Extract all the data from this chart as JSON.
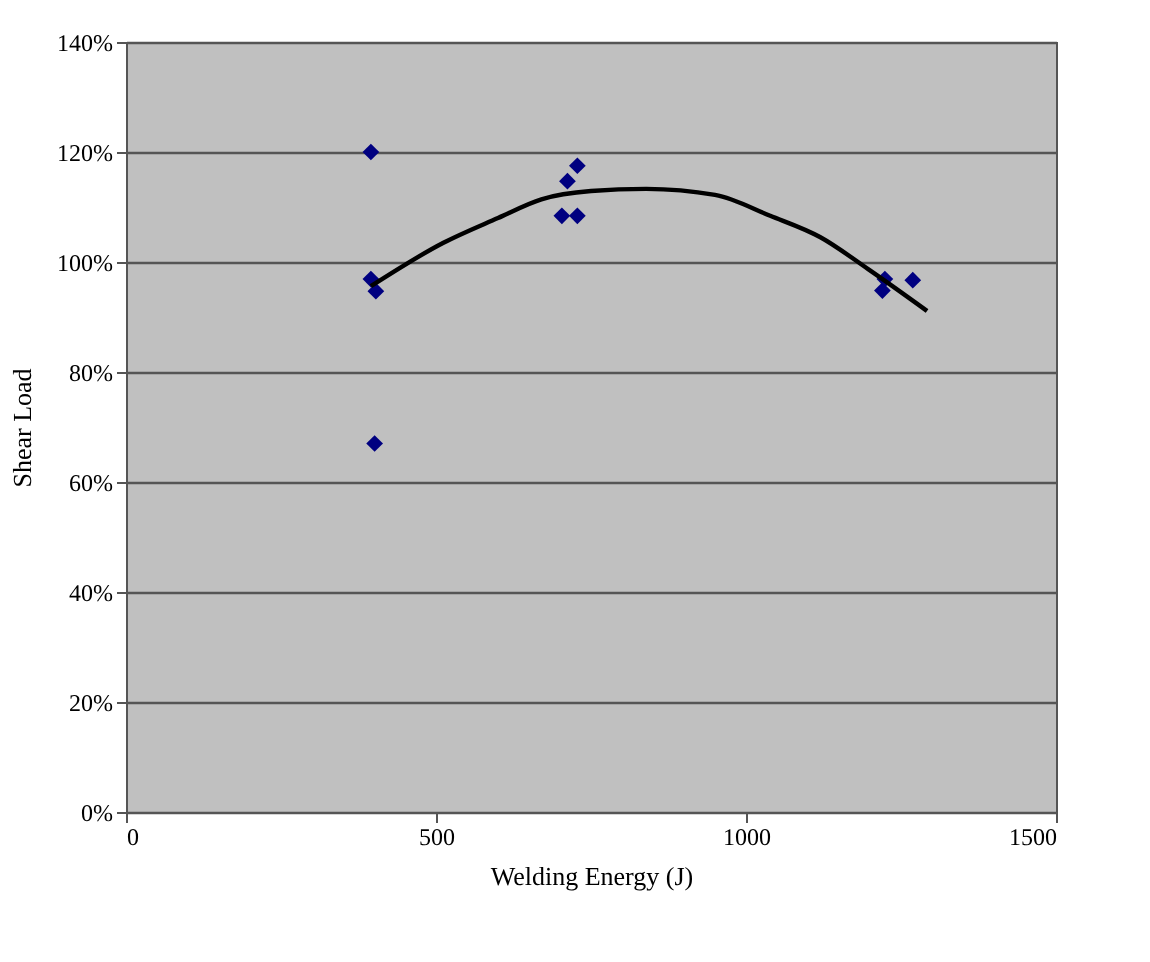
{
  "chart_data": {
    "type": "scatter",
    "xlabel": "Welding Energy (J)",
    "ylabel": "Shear Load",
    "xlim": [
      0,
      1500
    ],
    "xticks": [
      0,
      500,
      1000,
      1500
    ],
    "ylim": [
      0,
      140
    ],
    "yticks": [
      {
        "value": 0,
        "label": "0%"
      },
      {
        "value": 20,
        "label": "20%"
      },
      {
        "value": 40,
        "label": "40%"
      },
      {
        "value": 60,
        "label": "60%"
      },
      {
        "value": 80,
        "label": "80%"
      },
      {
        "value": 100,
        "label": "100%"
      },
      {
        "value": 120,
        "label": "120%"
      },
      {
        "value": 140,
        "label": "140%"
      }
    ],
    "grid": "y",
    "marker": "diamond",
    "series": [
      {
        "color": "#000080",
        "x": [
          395,
          395,
          403,
          401,
          728,
          712,
          703,
          728,
          1224,
          1220,
          1269
        ],
        "values": [
          120,
          96.9,
          94.7,
          67,
          117.5,
          114.7,
          108.4,
          108.4,
          96.9,
          94.8,
          96.7
        ]
      },
      {
        "type": "line",
        "color": "#000000",
        "line_style": "solid",
        "marker": "none",
        "x": [
          395,
          512,
          600,
          670,
          750,
          839,
          950,
          1039,
          1120,
          1197,
          1292
        ],
        "values": [
          95.6,
          103.5,
          108,
          111.4,
          112.9,
          113.3,
          112.2,
          108.4,
          104.5,
          98.7,
          91.1
        ]
      }
    ]
  }
}
